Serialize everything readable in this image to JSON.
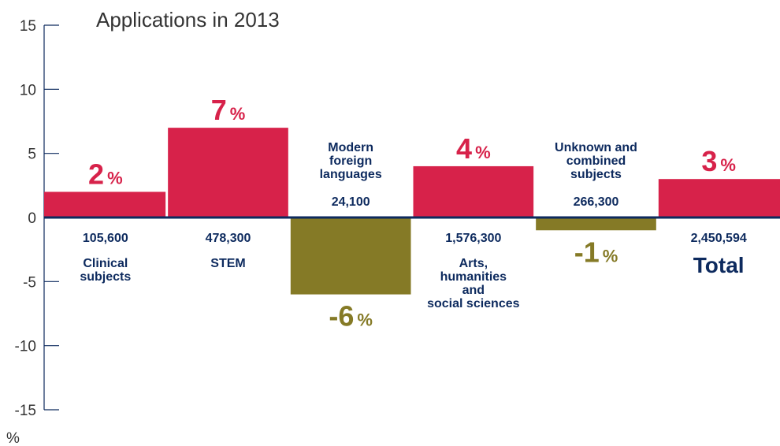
{
  "chart_data": {
    "type": "bar",
    "title": "Applications in 2013",
    "unit_label": "%",
    "ylim": [
      -15,
      15
    ],
    "yticks": [
      15,
      10,
      5,
      0,
      -5,
      -10,
      -15
    ],
    "grid": false,
    "legend": "none",
    "colors": {
      "positive": "#d7224a",
      "negative": "#857a26",
      "text": "#0d2a5e",
      "axis": "#0d2a5e",
      "ticks": "#333333"
    },
    "categories": [
      {
        "label": [
          "Clinical",
          "subjects"
        ],
        "count": "105,600",
        "value": 2,
        "pct_value": "2",
        "pct_sign": "%",
        "count_pos": "below",
        "label_pos": "below"
      },
      {
        "label": [
          "STEM"
        ],
        "count": "478,300",
        "value": 7,
        "pct_value": "7",
        "pct_sign": "%",
        "count_pos": "below",
        "label_pos": "below"
      },
      {
        "label": [
          "Modern",
          "foreign",
          "languages"
        ],
        "count": "24,100",
        "value": -6,
        "pct_value": "-6",
        "pct_sign": "%",
        "count_pos": "above",
        "label_pos": "above"
      },
      {
        "label": [
          "Arts,",
          "humanities",
          "and",
          "social sciences"
        ],
        "count": "1,576,300",
        "value": 4,
        "pct_value": "4",
        "pct_sign": "%",
        "count_pos": "below",
        "label_pos": "below"
      },
      {
        "label": [
          "Unknown and",
          "combined",
          "subjects"
        ],
        "count": "266,300",
        "value": -1,
        "pct_value": "-1",
        "pct_sign": "%",
        "count_pos": "above",
        "label_pos": "above"
      },
      {
        "label": [
          "Total"
        ],
        "count": "2,450,594",
        "value": 3,
        "pct_value": "3",
        "pct_sign": "%",
        "count_pos": "below",
        "label_pos": "below",
        "emphasis": true
      }
    ]
  }
}
